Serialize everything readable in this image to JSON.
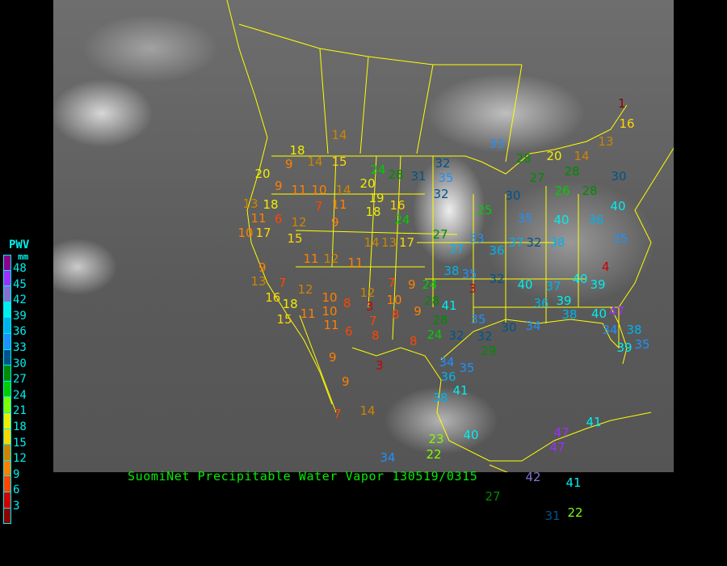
{
  "title": "SuomiNet Precipitable Water Vapor 130519/0315",
  "legend": {
    "title": "PWV",
    "unit": "mm",
    "labels": [
      "48",
      "45",
      "42",
      "39",
      "36",
      "33",
      "30",
      "27",
      "24",
      "21",
      "18",
      "15",
      "12",
      "9",
      "6",
      "3"
    ],
    "colors": [
      "#8b008b",
      "#9b30ff",
      "#8470d0",
      "#00eeee",
      "#00b2ee",
      "#1e90ff",
      "#00548b",
      "#008b00",
      "#00cd00",
      "#7fff00",
      "#eeee00",
      "#ffd700",
      "#cd8500",
      "#ff8000",
      "#ff4500",
      "#cd0000",
      "#8b0000"
    ]
  },
  "stations": [
    14,
    18,
    9,
    14,
    15,
    20,
    9,
    11,
    10,
    14,
    20,
    24,
    28,
    31,
    32,
    35,
    32,
    33,
    28,
    20,
    14,
    13,
    16,
    28,
    30,
    28,
    26,
    27,
    30,
    25,
    35,
    40,
    36,
    40,
    35,
    27,
    24,
    16,
    19,
    18,
    11,
    7,
    12,
    6,
    11,
    10,
    17,
    13,
    18,
    15,
    9,
    12,
    11,
    11,
    14,
    13,
    17,
    37,
    33,
    36,
    37,
    32,
    38,
    38,
    35,
    3,
    32,
    40,
    37,
    40,
    39,
    4,
    9,
    13,
    7,
    16,
    18,
    12,
    10,
    10,
    11,
    15,
    8,
    3,
    12,
    7,
    9,
    24,
    28,
    41,
    10,
    8,
    9,
    28,
    24,
    32,
    35,
    32,
    29,
    30,
    34,
    36,
    39,
    38,
    40,
    47,
    34,
    38,
    39,
    35,
    11,
    6,
    7,
    8,
    8,
    34,
    35,
    36,
    41,
    38,
    9,
    9,
    3,
    14,
    7,
    23,
    22,
    40,
    34,
    42,
    41,
    27,
    22,
    31,
    47,
    47,
    41,
    1
  ]
}
